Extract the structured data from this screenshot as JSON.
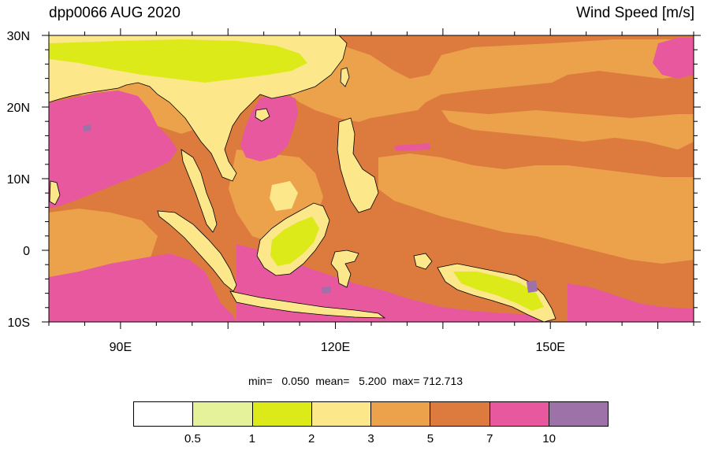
{
  "header": {
    "title": "dpp0066 AUG 2020",
    "variable": "Wind Speed [m/s]"
  },
  "map": {
    "lon_range": [
      80,
      170
    ],
    "lat_range": [
      -10,
      30
    ],
    "lat_ticks": [
      {
        "lat": 30,
        "label": "30N"
      },
      {
        "lat": 20,
        "label": "20N"
      },
      {
        "lat": 10,
        "label": "10N"
      },
      {
        "lat": 0,
        "label": "0"
      },
      {
        "lat": -10,
        "label": "10S"
      }
    ],
    "lon_ticks": [
      {
        "lon": 90,
        "label": "90E"
      },
      {
        "lon": 120,
        "label": "120E"
      },
      {
        "lon": 150,
        "label": "150E"
      }
    ]
  },
  "stats": {
    "min_label": "min=",
    "min": "0.050",
    "mean_label": "mean=",
    "mean": "5.200",
    "max_label": "max=",
    "max": "712.713"
  },
  "colorbar": {
    "colors": [
      "#ffffff",
      "#e6f29a",
      "#dcea1a",
      "#fce88a",
      "#eba24b",
      "#dd7b3e",
      "#e8589f",
      "#9c72a9"
    ],
    "levels": [
      "0.5",
      "1",
      "2",
      "3",
      "5",
      "7",
      "10"
    ]
  }
}
